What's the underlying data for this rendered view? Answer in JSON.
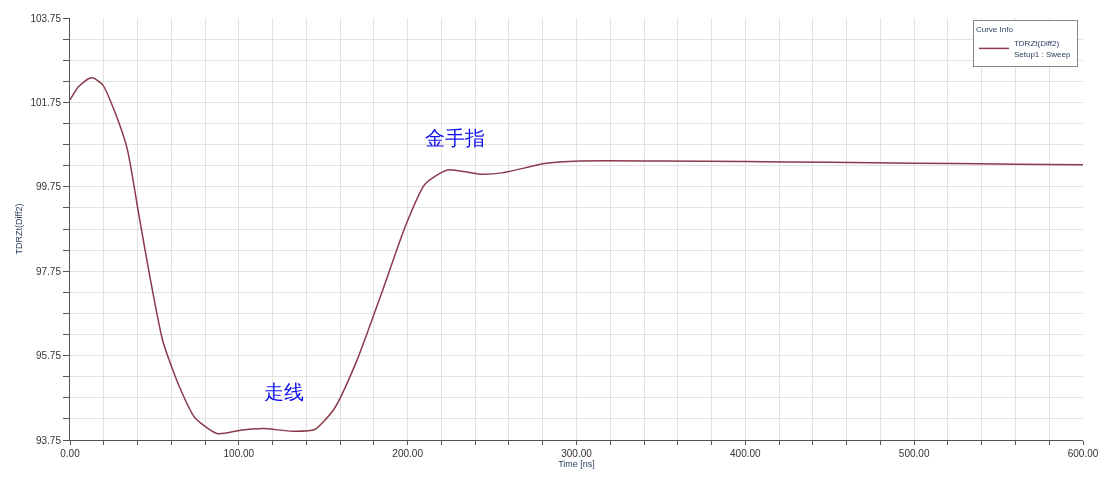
{
  "chart_data": {
    "type": "line",
    "xlabel": "Time [ns]",
    "ylabel": "TDRZt(Diff2)",
    "legend_title": "Curve Info",
    "x": [
      0,
      5,
      10.9,
      13.8,
      19.5,
      26.3,
      33.9,
      40.6,
      47.3,
      55,
      64.6,
      74.1,
      87.5,
      101,
      114.4,
      131.6,
      145,
      156.5,
      169.9,
      185.2,
      198.7,
      210.2,
      223.6,
      242.7,
      256.1,
      281,
      302,
      350,
      400,
      450,
      500,
      550,
      600
    ],
    "series": [
      {
        "name": "TDRZt(Diff2)\nSetup1 : Sweep",
        "color": "#8b3a4a",
        "values": [
          101.81,
          102.12,
          102.31,
          102.33,
          102.16,
          101.55,
          100.65,
          99.13,
          97.62,
          96.09,
          95.03,
          94.27,
          93.9,
          93.98,
          94.02,
          93.96,
          94.0,
          94.49,
          95.63,
          97.3,
          98.82,
          99.81,
          100.15,
          100.05,
          100.08,
          100.3,
          100.36,
          100.36,
          100.35,
          100.33,
          100.31,
          100.29,
          100.27
        ]
      }
    ],
    "xlim": [
      0,
      600
    ],
    "xticks": [
      {
        "value": 0,
        "label": "0.00"
      },
      {
        "value": 20,
        "label": null
      },
      {
        "value": 40,
        "label": null
      },
      {
        "value": 60,
        "label": null
      },
      {
        "value": 80,
        "label": null
      },
      {
        "value": 100,
        "label": "100.00"
      },
      {
        "value": 120,
        "label": null
      },
      {
        "value": 140,
        "label": null
      },
      {
        "value": 160,
        "label": null
      },
      {
        "value": 180,
        "label": null
      },
      {
        "value": 200,
        "label": "200.00"
      },
      {
        "value": 220,
        "label": null
      },
      {
        "value": 240,
        "label": null
      },
      {
        "value": 260,
        "label": null
      },
      {
        "value": 280,
        "label": null
      },
      {
        "value": 300,
        "label": "300.00"
      },
      {
        "value": 320,
        "label": null
      },
      {
        "value": 340,
        "label": null
      },
      {
        "value": 360,
        "label": null
      },
      {
        "value": 380,
        "label": null
      },
      {
        "value": 400,
        "label": "400.00"
      },
      {
        "value": 420,
        "label": null
      },
      {
        "value": 440,
        "label": null
      },
      {
        "value": 460,
        "label": null
      },
      {
        "value": 480,
        "label": null
      },
      {
        "value": 500,
        "label": "500.00"
      },
      {
        "value": 520,
        "label": null
      },
      {
        "value": 540,
        "label": null
      },
      {
        "value": 560,
        "label": null
      },
      {
        "value": 580,
        "label": null
      },
      {
        "value": 600,
        "label": "600.00"
      }
    ],
    "ylim": [
      93.75,
      103.75
    ],
    "yticks": [
      93.75,
      {
        "value": 94.25,
        "label": null
      },
      {
        "value": 94.75,
        "label": null
      },
      {
        "value": 95.25,
        "label": null
      },
      95.75,
      {
        "value": 96.25,
        "label": null
      },
      {
        "value": 96.75,
        "label": null
      },
      {
        "value": 97.25,
        "label": null
      },
      97.75,
      {
        "value": 98.25,
        "label": null
      },
      {
        "value": 98.75,
        "label": null
      },
      {
        "value": 99.25,
        "label": null
      },
      99.75,
      {
        "value": 100.25,
        "label": null
      },
      {
        "value": 100.75,
        "label": null
      },
      {
        "value": 101.25,
        "label": null
      },
      101.75,
      {
        "value": 102.25,
        "label": null
      },
      {
        "value": 102.75,
        "label": null
      },
      {
        "value": 103.25,
        "label": null
      },
      103.75
    ],
    "annotations": [
      "走线",
      "金手指"
    ],
    "grid": true,
    "legend": "top right",
    "marker": "none",
    "line_style": "solid"
  }
}
